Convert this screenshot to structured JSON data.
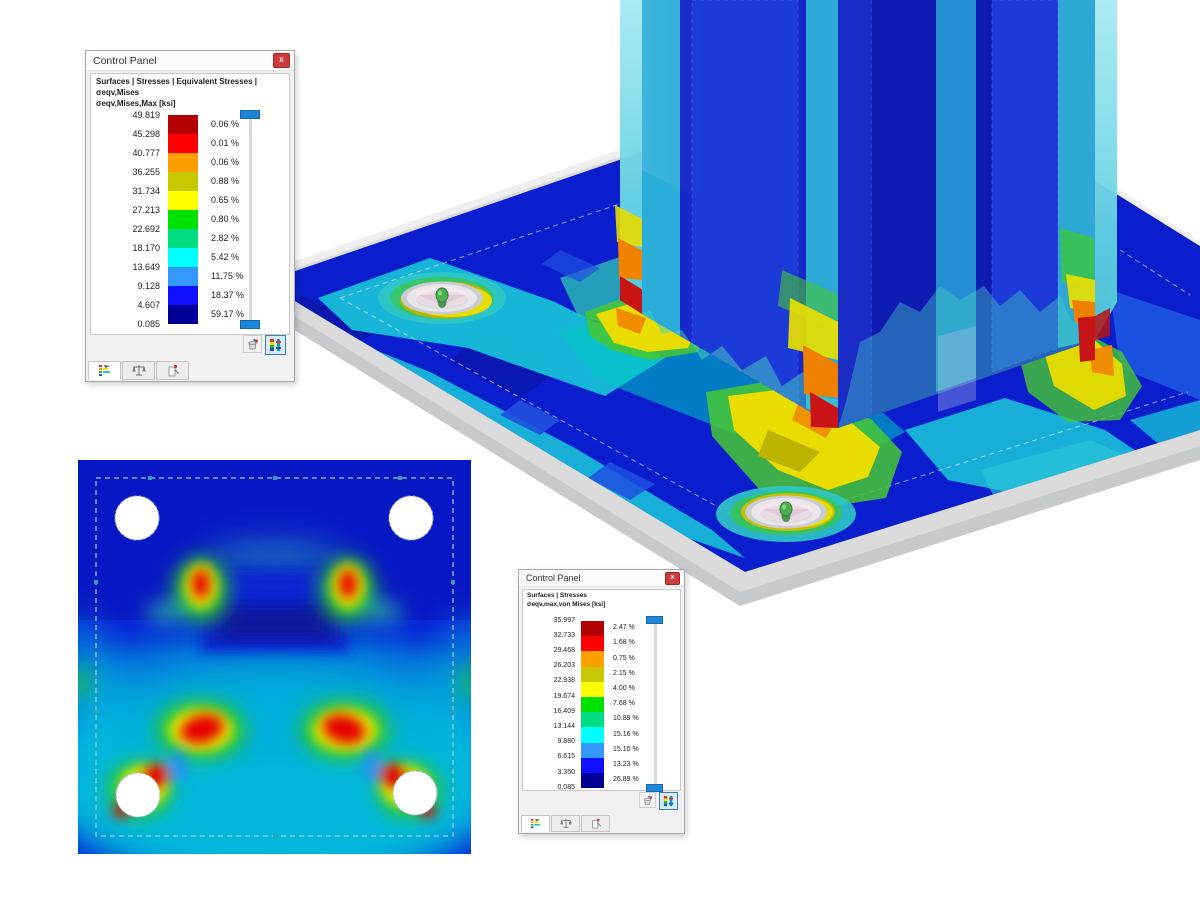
{
  "app": {
    "background": "#FFFFFF"
  },
  "colormap": [
    "#B30000",
    "#FF0000",
    "#FFA000",
    "#C8C800",
    "#FFFF00",
    "#00E100",
    "#00DC82",
    "#00FFFF",
    "#3399FF",
    "#0F0FFF",
    "#000096"
  ],
  "ui_colors": {
    "slider_handle": "#1E86D7",
    "close_button": "#CE3B3B",
    "selected_button_border": "#3C7FB4"
  },
  "panels": [
    {
      "title": "Control Panel",
      "close_label": "x",
      "breadcrumb": "Surfaces | Stresses | Equivalent Stresses | σeqv,Mises",
      "quantity": "σeqv,Mises,Max [ksi]",
      "values": [
        "49.819",
        "45.298",
        "40.777",
        "36.255",
        "31.734",
        "27.213",
        "22.692",
        "18.170",
        "13.649",
        "9.128",
        "4.607",
        "0.085"
      ],
      "percents": [
        "0.06 %",
        "0.01 %",
        "0.06 %",
        "0.88 %",
        "0.65 %",
        "0.80 %",
        "2.82 %",
        "5.42 %",
        "11.75 %",
        "18.37 %",
        "59.17 %"
      ],
      "tabs": [
        {
          "icon": "color-scale-legend"
        },
        {
          "icon": "balance-scales"
        },
        {
          "icon": "annotate-page"
        }
      ]
    },
    {
      "title": "Control Panel",
      "close_label": "x",
      "breadcrumb": "Surfaces | Stresses",
      "quantity": "σeqv,max,von Mises [ksi]",
      "values": [
        "35.997",
        "32.733",
        "29.468",
        "26.203",
        "22.938",
        "19.674",
        "16.409",
        "13.144",
        "9.880",
        "6.615",
        "3.350",
        "0.085"
      ],
      "percents": [
        "2.47 %",
        "1.68 %",
        "0.75 %",
        "2.15 %",
        "4.00 %",
        "7.68 %",
        "10.89 %",
        "15.16 %",
        "15.10 %",
        "13.23 %",
        "26.89 %"
      ],
      "tabs": [
        {
          "icon": "color-scale-legend"
        },
        {
          "icon": "balance-scales"
        },
        {
          "icon": "annotate-page"
        }
      ]
    }
  ],
  "scene": {
    "description_colors": {
      "plate_base": "#0A1ECD",
      "plate_cyan": "#18BED8",
      "slab_gray": "#D9D9D9",
      "column_dark": "#0F1CB4",
      "hotspot_yellow": "#E8DC00",
      "hotspot_red": "#C81414"
    }
  }
}
